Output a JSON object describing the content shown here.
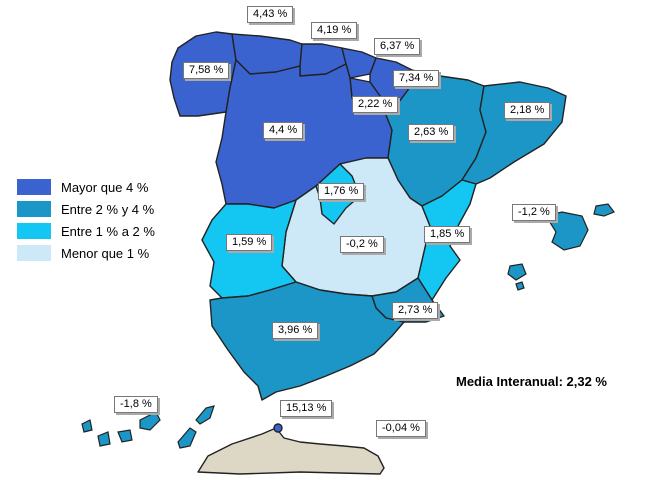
{
  "colors": {
    "dark": "#3a63cf",
    "mid": "#1b96c7",
    "light": "#14c6f2",
    "pale": "#cde9f8",
    "ceuta": "#dcd8c5"
  },
  "legend": [
    {
      "label": "Mayor que 4 %",
      "color": "#3a63cf"
    },
    {
      "label": "Entre 2 % y 4 %",
      "color": "#1b96c7"
    },
    {
      "label": "Entre 1 % a 2 %",
      "color": "#14c6f2"
    },
    {
      "label": "Menor que 1 %",
      "color": "#cde9f8"
    }
  ],
  "media": "Media Interanual: 2,32 %",
  "regions": {
    "galicia": "7,58 %",
    "asturias": "4,43 %",
    "cantabria": "4,19 %",
    "pais_vasco": "6,37 %",
    "navarra": "7,34 %",
    "la_rioja": "2,22 %",
    "castilla_leon": "4,4 %",
    "aragon": "2,63 %",
    "cataluna": "2,18 %",
    "madrid": "1,76 %",
    "castilla_la_mancha": "-0,2 %",
    "extremadura": "1,59 %",
    "valencia": "1,85 %",
    "baleares": "-1,2 %",
    "murcia": "2,73 %",
    "andalucia": "3,96 %",
    "canarias": "-1,8 %",
    "melilla": "15,13 %",
    "ceuta": "-0,04 %"
  }
}
